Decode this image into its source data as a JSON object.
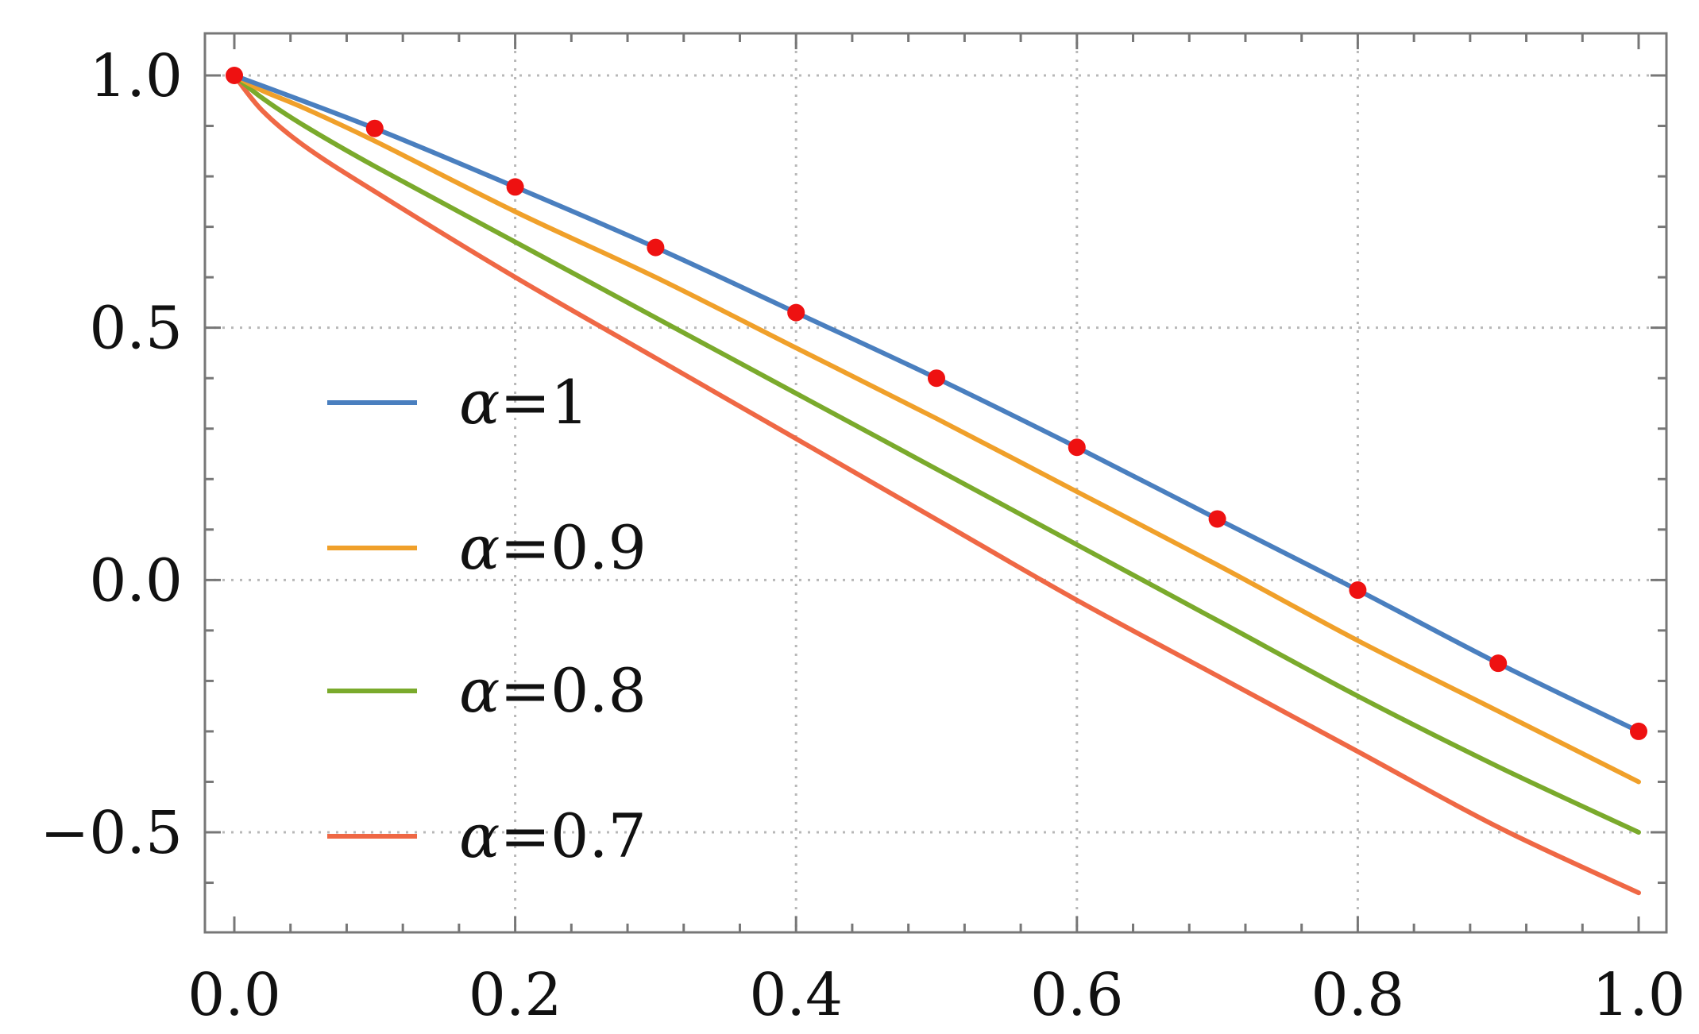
{
  "chart_data": {
    "type": "line",
    "title": "",
    "xlabel": "",
    "ylabel": "",
    "xlim": [
      0,
      1
    ],
    "ylim": [
      -0.7,
      1.08
    ],
    "xticks": [
      0.0,
      0.2,
      0.4,
      0.6,
      0.8,
      1.0
    ],
    "xtick_labels": [
      "0.0",
      "0.2",
      "0.4",
      "0.6",
      "0.8",
      "1.0"
    ],
    "yticks": [
      1.0,
      0.5,
      0.0,
      -0.5
    ],
    "ytick_labels": [
      "1.0",
      "0.5",
      "0.0",
      "−0.5"
    ],
    "grid": true,
    "grid_style": "dotted",
    "legend_position": "center-left",
    "series": [
      {
        "name": "α=1",
        "legend_symbol": "α",
        "legend_value": "=1",
        "color": "#4a7fbf",
        "x": [
          0,
          0.1,
          0.2,
          0.3,
          0.4,
          0.5,
          0.6,
          0.7,
          0.8,
          0.9,
          1.0
        ],
        "y": [
          1.0,
          0.895,
          0.779,
          0.659,
          0.53,
          0.4,
          0.263,
          0.121,
          -0.02,
          -0.165,
          -0.3
        ]
      },
      {
        "name": "α=0.9",
        "legend_symbol": "α",
        "legend_value": "=0.9",
        "color": "#f0a02a",
        "x": [
          0,
          0.02,
          0.05,
          0.1,
          0.2,
          0.3,
          0.4,
          0.5,
          0.6,
          0.7,
          0.8,
          0.9,
          1.0
        ],
        "y": [
          1.0,
          0.97,
          0.935,
          0.87,
          0.73,
          0.6,
          0.46,
          0.32,
          0.175,
          0.03,
          -0.12,
          -0.26,
          -0.4
        ]
      },
      {
        "name": "α=0.8",
        "legend_symbol": "α",
        "legend_value": "=0.8",
        "color": "#7aaa2c",
        "x": [
          0,
          0.02,
          0.05,
          0.1,
          0.2,
          0.3,
          0.4,
          0.5,
          0.6,
          0.7,
          0.8,
          0.9,
          1.0
        ],
        "y": [
          1.0,
          0.955,
          0.9,
          0.82,
          0.67,
          0.52,
          0.37,
          0.22,
          0.07,
          -0.08,
          -0.23,
          -0.37,
          -0.5
        ]
      },
      {
        "name": "α=0.7",
        "legend_symbol": "α",
        "legend_value": "=0.7",
        "color": "#ef6845",
        "x": [
          0,
          0.02,
          0.05,
          0.1,
          0.2,
          0.3,
          0.4,
          0.5,
          0.6,
          0.7,
          0.8,
          0.9,
          1.0
        ],
        "y": [
          1.0,
          0.93,
          0.86,
          0.77,
          0.6,
          0.44,
          0.28,
          0.12,
          -0.04,
          -0.19,
          -0.34,
          -0.49,
          -0.62
        ]
      }
    ],
    "markers": {
      "name": "",
      "color": "#ee1111",
      "x": [
        0,
        0.1,
        0.2,
        0.3,
        0.4,
        0.5,
        0.6,
        0.7,
        0.8,
        0.9,
        1.0
      ],
      "y": [
        1.0,
        0.895,
        0.779,
        0.659,
        0.53,
        0.4,
        0.263,
        0.121,
        -0.02,
        -0.165,
        -0.3
      ]
    }
  }
}
